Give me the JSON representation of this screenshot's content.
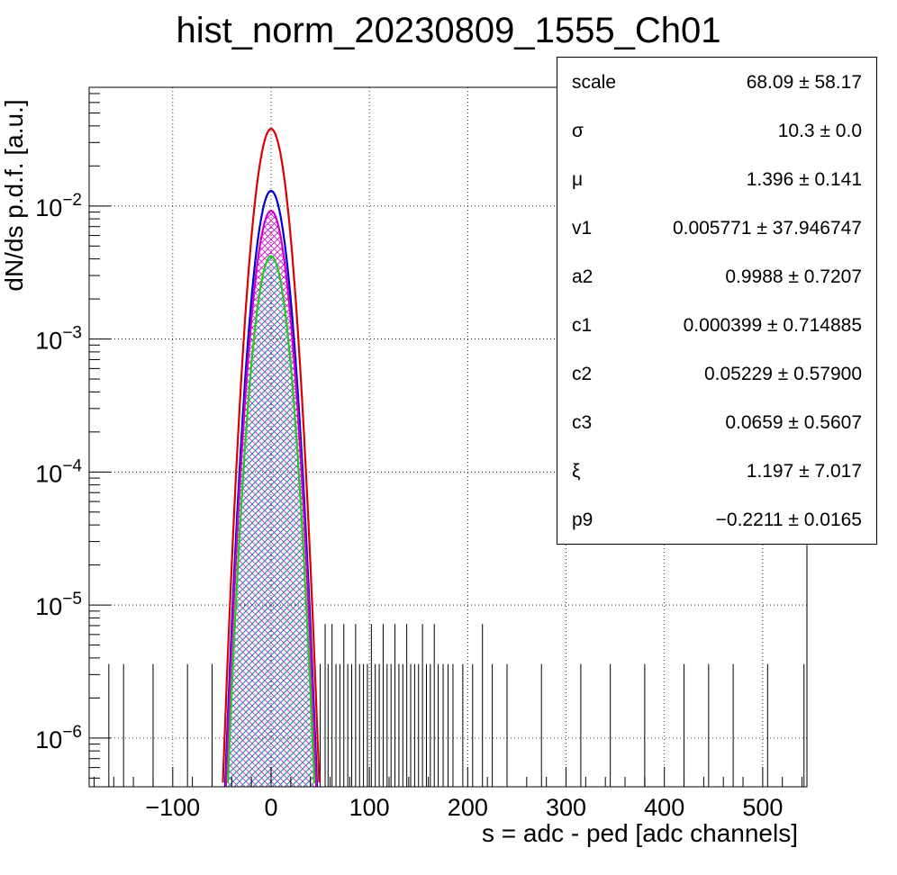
{
  "title": "hist_norm_20230809_1555_Ch01",
  "chart_data": {
    "type": "line",
    "title": "hist_norm_20230809_1555_Ch01",
    "xlabel": "s = adc - ped [adc channels]",
    "ylabel": "dN/ds p.d.f. [a.u.]",
    "xlim": [
      -185,
      545
    ],
    "ylim": [
      4.3e-07,
      0.078
    ],
    "yscale": "log",
    "grid": true,
    "x_ticks": [
      -100,
      0,
      100,
      200,
      300,
      400,
      500
    ],
    "x_tick_labels": [
      "−100",
      "0",
      "100",
      "200",
      "300",
      "400",
      "500"
    ],
    "y_ticks": [
      1e-06,
      1e-05,
      0.0001,
      0.001,
      0.01
    ],
    "y_tick_labels": [
      {
        "base": "10",
        "exp": "−6"
      },
      {
        "base": "10",
        "exp": "−5"
      },
      {
        "base": "10",
        "exp": "−4"
      },
      {
        "base": "10",
        "exp": "−3"
      },
      {
        "base": "10",
        "exp": "−2"
      }
    ],
    "series": [
      {
        "color": "#dd0000",
        "peak_x": 0,
        "peak": 0.038,
        "sigma": 10.3
      },
      {
        "color": "#0000cc",
        "peak_x": 0,
        "peak": 0.013,
        "sigma": 10.3
      },
      {
        "color": "#cc00cc",
        "peak_x": 0,
        "peak": 0.0092,
        "sigma": 10.3,
        "hatched": true
      },
      {
        "color": "#22cc22",
        "peak_x": 0,
        "peak": 0.0042,
        "sigma": 10.3,
        "hatched": true
      }
    ],
    "data_tail": {
      "color": "#000000",
      "single_count_level": 3.6e-06,
      "double_count_level": 7.2e-06,
      "bins_x": [
        -165,
        -150,
        -120,
        -85,
        -60,
        50,
        55,
        58,
        62,
        66,
        70,
        74,
        78,
        82,
        86,
        90,
        94,
        98,
        102,
        106,
        110,
        114,
        118,
        122,
        126,
        130,
        134,
        138,
        142,
        146,
        150,
        154,
        158,
        162,
        166,
        170,
        175,
        180,
        185,
        195,
        205,
        215,
        225,
        240,
        275,
        315,
        345,
        380,
        420,
        445,
        470,
        505,
        542
      ],
      "bins_count": [
        1,
        1,
        1,
        1,
        1,
        1,
        2,
        1,
        2,
        1,
        1,
        2,
        1,
        1,
        2,
        1,
        1,
        1,
        2,
        1,
        1,
        2,
        1,
        1,
        2,
        1,
        1,
        2,
        1,
        1,
        1,
        2,
        1,
        1,
        2,
        1,
        1,
        1,
        1,
        1,
        1,
        2,
        1,
        1,
        1,
        1,
        1,
        1,
        1,
        1,
        1,
        1,
        1
      ]
    }
  },
  "stats": [
    {
      "name": "scale",
      "value": "68.09 ± 58.17"
    },
    {
      "name": "σ",
      "value": "10.3 ± 0.0"
    },
    {
      "name": "μ",
      "value": "1.396 ± 0.141"
    },
    {
      "name": "v1",
      "value": "0.005771 ± 37.946747"
    },
    {
      "name": "a2",
      "value": "0.9988 ± 0.7207"
    },
    {
      "name": "c1",
      "value": "0.000399 ± 0.714885"
    },
    {
      "name": "c2",
      "value": "0.05229 ± 0.57900"
    },
    {
      "name": "c3",
      "value": "0.0659 ± 0.5607"
    },
    {
      "name": "ξ",
      "value": "1.197 ± 7.017"
    },
    {
      "name": "p9",
      "value": "−0.2211 ± 0.0165"
    }
  ]
}
